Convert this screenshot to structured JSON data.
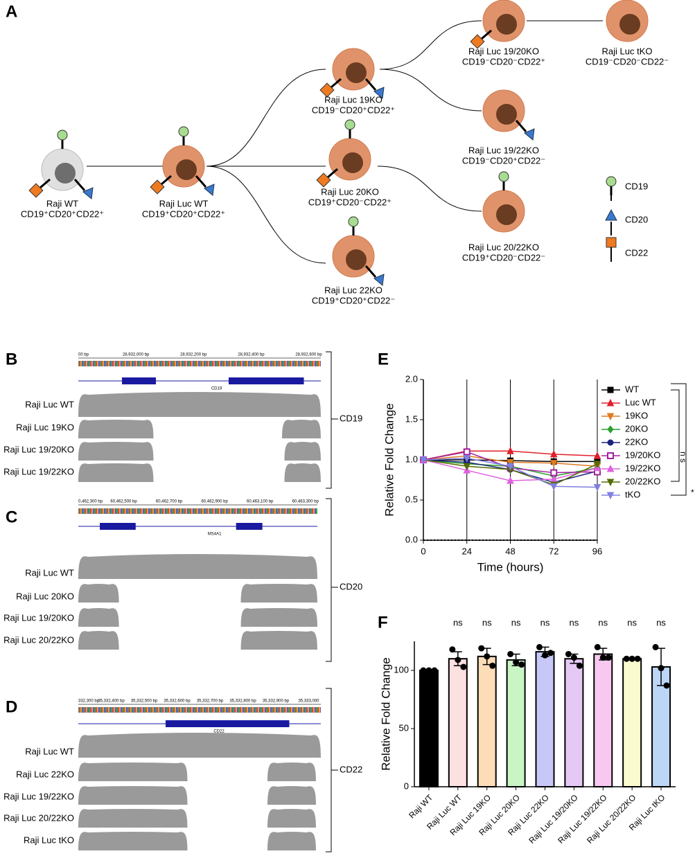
{
  "diagram": {
    "label": "A",
    "nodes": [
      {
        "name": "Raji WT",
        "phenotype": "CD19⁺CD20⁺CD22⁺"
      },
      {
        "name": "Raji Luc WT",
        "phenotype": "CD19⁺CD20⁺CD22⁺"
      },
      {
        "name": "Raji Luc 19KO",
        "phenotype": "CD19⁻CD20⁺CD22⁺"
      },
      {
        "name": "Raji Luc 20KO",
        "phenotype": "CD19⁺CD20⁻CD22⁺"
      },
      {
        "name": "Raji Luc 22KO",
        "phenotype": "CD19⁺CD20⁺CD22⁻"
      },
      {
        "name": "Raji Luc 19/20KO",
        "phenotype": "CD19⁻CD20⁻CD22⁺"
      },
      {
        "name": "Raji Luc tKO",
        "phenotype": "CD19⁻CD20⁻CD22⁻"
      },
      {
        "name": "Raji Luc 19/22KO",
        "phenotype": "CD19⁻CD20⁺CD22⁻"
      },
      {
        "name": "Raji Luc 20/22KO",
        "phenotype": "CD19⁺CD20⁻CD22⁻"
      }
    ],
    "legend": [
      "CD19",
      "CD20",
      "CD22"
    ]
  },
  "tracks": [
    {
      "label": "B",
      "ruler": [
        "00 bp",
        "28,932,000 bp",
        "28,932,200 bp",
        "28,932,400 bp",
        "28,932,600 bp"
      ],
      "gene": "CD19",
      "target": "CD19",
      "rows": [
        "Raji Luc WT",
        "Raji Luc 19KO",
        "Raji Luc 19/20KO",
        "Raji Luc 19/22KO"
      ]
    },
    {
      "label": "C",
      "ruler": [
        "0,462,300 bp",
        "60,462,500 bp",
        "60,462,700 bp",
        "60,462,900 bp",
        "60,463,100 bp",
        "60,463,300 bp"
      ],
      "gene": "MS4A1",
      "target": "CD20",
      "rows": [
        "Raji Luc WT",
        "Raji Luc 20KO",
        "Raji Luc 19/20KO",
        "Raji Luc 20/22KO"
      ]
    },
    {
      "label": "D",
      "ruler": [
        "332,300 bp",
        "35,332,400 bp",
        "35,332,500 bp",
        "35,332,600 bp",
        "35,332,700 bp",
        "35,332,800 bp",
        "35,332,900 bp",
        "35,333,000"
      ],
      "gene": "CD22",
      "target": "CD22",
      "rows": [
        "Raji Luc WT",
        "Raji Luc 22KO",
        "Raji Luc 19/22KO",
        "Raji Luc 20/22KO",
        "Raji Luc tKO"
      ]
    }
  ],
  "chart_data": [
    {
      "type": "line",
      "panel": "E",
      "x_label": "Time (hours)",
      "y_label": "Relative Fold Change",
      "x": [
        0,
        24,
        48,
        72,
        96
      ],
      "xlim": [
        0,
        96
      ],
      "xticks": [
        0,
        24,
        48,
        72,
        96
      ],
      "ylim": [
        0,
        2
      ],
      "yticks": [
        {
          "value": 0,
          "label": "0.0"
        },
        {
          "value": 0.5,
          "label": "0.5"
        },
        {
          "value": 1,
          "label": "1.0"
        },
        {
          "value": 1.5,
          "label": "1.5"
        },
        {
          "value": 2,
          "label": "2.0"
        }
      ],
      "grid": "x",
      "series": [
        {
          "name": "WT",
          "color": "#000000",
          "marker": "square",
          "values": [
            1,
            1,
            0.99,
            0.98,
            0.98
          ]
        },
        {
          "name": "Luc WT",
          "color": "#e0202a",
          "marker": "triangle",
          "values": [
            1,
            1.11,
            1.11,
            1.07,
            1.05
          ]
        },
        {
          "name": "19KO",
          "color": "#e07b20",
          "marker": "down-triangle",
          "values": [
            1,
            1.05,
            0.97,
            0.96,
            0.92
          ]
        },
        {
          "name": "20KO",
          "color": "#2ca02c",
          "marker": "diamond",
          "values": [
            1,
            0.95,
            0.92,
            0.8,
            0.9
          ]
        },
        {
          "name": " 22KO",
          "color": "#1a237e",
          "marker": "circle",
          "values": [
            1,
            0.97,
            0.88,
            0.72,
            0.86
          ]
        },
        {
          "name": "19/20KO",
          "color": "#a020a0",
          "marker": "open-square",
          "values": [
            1,
            1.1,
            0.9,
            0.84,
            0.85
          ]
        },
        {
          "name": "19/22KO",
          "color": "#e060e0",
          "marker": "triangle",
          "values": [
            1,
            0.87,
            0.74,
            0.76,
            0.9
          ]
        },
        {
          "name": "20/22KO",
          "color": "#556b00",
          "marker": "down-triangle",
          "values": [
            1,
            0.92,
            0.88,
            0.69,
            0.95
          ]
        },
        {
          "name": "tKO",
          "color": "#8080e0",
          "marker": "down-triangle",
          "values": [
            1,
            1.02,
            0.92,
            0.67,
            0.66
          ]
        }
      ],
      "annotations": [
        "n s",
        "*"
      ]
    },
    {
      "type": "bar",
      "panel": "F",
      "y_label": "Relative Fold Change",
      "categories": [
        "Raji WT",
        "Raji Luc WT",
        "Raji Luc 19KO",
        "Raji Luc 20KO",
        "Raji Luc 22KO",
        "Raji Luc 19/20KO",
        "Raji Luc 19/22KO",
        "Raji Luc 20/22KO",
        "Raji Luc tKO"
      ],
      "values": [
        100,
        110,
        112,
        109,
        116,
        110,
        114,
        110,
        103
      ],
      "errors": [
        0,
        6,
        7,
        5,
        4,
        4,
        5,
        1,
        16
      ],
      "points": [
        [
          100,
          100,
          100
        ],
        [
          118,
          109,
          103
        ],
        [
          119,
          112,
          104
        ],
        [
          114,
          107,
          105
        ],
        [
          120,
          113,
          115
        ],
        [
          114,
          111,
          104
        ],
        [
          120,
          111,
          111
        ],
        [
          110,
          110,
          110
        ],
        [
          120,
          102,
          87
        ]
      ],
      "colors": [
        "#000000",
        "#fde0e0",
        "#fddcb8",
        "#c9f5c4",
        "#c8c8f8",
        "#e6c8f5",
        "#f8c8f0",
        "#fbfbd0",
        "#bcd6f5"
      ],
      "significance": [
        null,
        "ns",
        "ns",
        "ns",
        "ns",
        "ns",
        "ns",
        "ns",
        "ns"
      ],
      "ylim": [
        0,
        125
      ],
      "yticks": [
        0,
        50,
        100
      ]
    }
  ]
}
